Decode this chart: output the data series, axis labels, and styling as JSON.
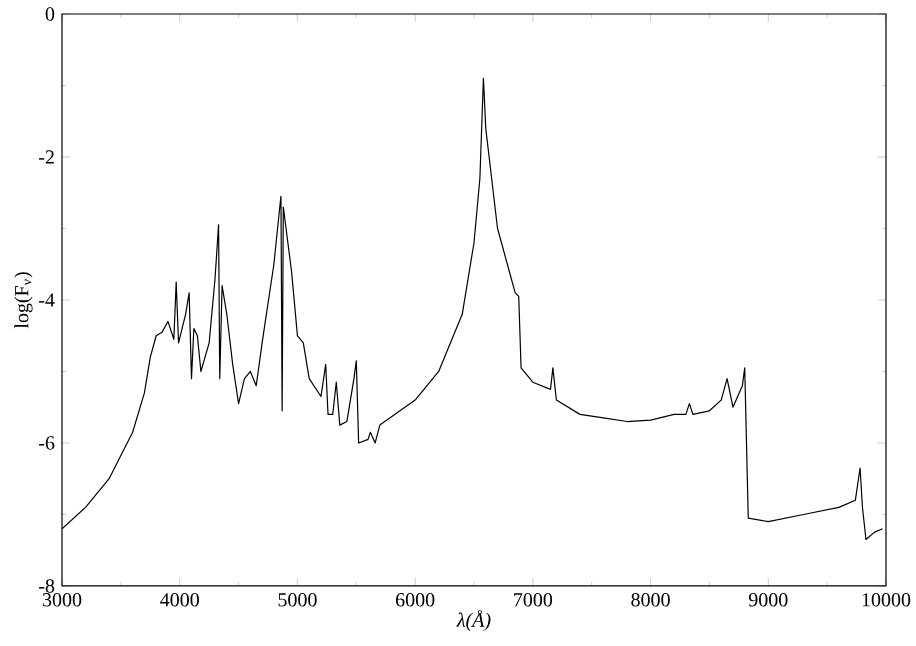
{
  "chart_data": {
    "type": "line",
    "xlabel": "λ(Å)",
    "ylabel": "log(F$_{ν}$)",
    "xlim": [
      3000,
      10000
    ],
    "ylim": [
      -8,
      0
    ],
    "xticks": [
      3000,
      4000,
      5000,
      6000,
      7000,
      8000,
      9000,
      10000
    ],
    "yticks": [
      -8,
      -6,
      -4,
      -2,
      0
    ],
    "x": [
      3000,
      3200,
      3400,
      3600,
      3700,
      3750,
      3800,
      3850,
      3900,
      3950,
      3970,
      3990,
      4050,
      4080,
      4100,
      4120,
      4150,
      4180,
      4250,
      4300,
      4330,
      4340,
      4360,
      4400,
      4450,
      4500,
      4550,
      4600,
      4650,
      4700,
      4800,
      4850,
      4860,
      4870,
      4880,
      4950,
      5000,
      5050,
      5100,
      5200,
      5240,
      5260,
      5300,
      5330,
      5360,
      5420,
      5480,
      5500,
      5520,
      5600,
      5620,
      5660,
      5700,
      6000,
      6200,
      6400,
      6500,
      6550,
      6580,
      6600,
      6700,
      6850,
      6880,
      6900,
      7000,
      7150,
      7170,
      7200,
      7400,
      7600,
      7800,
      8000,
      8200,
      8300,
      8330,
      8360,
      8500,
      8600,
      8650,
      8700,
      8780,
      8800,
      8830,
      9000,
      9300,
      9600,
      9740,
      9780,
      9800,
      9830,
      9900,
      9970
    ],
    "series": [
      {
        "color": "#000000",
        "values": [
          -7.2,
          -6.9,
          -6.5,
          -5.85,
          -5.3,
          -4.8,
          -4.5,
          -4.45,
          -4.3,
          -4.55,
          -3.75,
          -4.6,
          -4.2,
          -3.9,
          -5.1,
          -4.4,
          -4.5,
          -5.0,
          -4.6,
          -3.7,
          -2.95,
          -5.1,
          -3.8,
          -4.2,
          -4.9,
          -5.45,
          -5.1,
          -5.0,
          -5.2,
          -4.6,
          -3.5,
          -2.7,
          -2.55,
          -5.55,
          -2.7,
          -3.6,
          -4.5,
          -4.6,
          -5.1,
          -5.35,
          -4.9,
          -5.6,
          -5.6,
          -5.15,
          -5.75,
          -5.7,
          -5.1,
          -4.85,
          -6.0,
          -5.95,
          -5.85,
          -6.0,
          -5.75,
          -5.4,
          -5.0,
          -4.2,
          -3.2,
          -2.3,
          -0.9,
          -1.6,
          -3.0,
          -3.9,
          -3.95,
          -4.95,
          -5.15,
          -5.25,
          -4.95,
          -5.4,
          -5.6,
          -5.65,
          -5.7,
          -5.68,
          -5.6,
          -5.6,
          -5.45,
          -5.6,
          -5.55,
          -5.4,
          -5.1,
          -5.5,
          -5.2,
          -4.95,
          -7.05,
          -7.1,
          -7.0,
          -6.9,
          -6.8,
          -6.35,
          -6.9,
          -7.35,
          -7.25,
          -7.2
        ]
      }
    ]
  }
}
